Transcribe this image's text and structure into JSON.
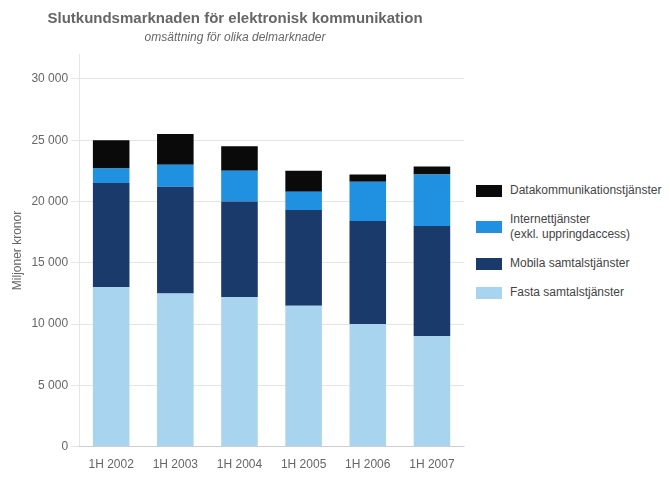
{
  "chart_data": {
    "type": "bar",
    "stacked": true,
    "title": "Slutkundsmarknaden för elektronisk kommunikation",
    "subtitle": "omsättning för olika delmarknader",
    "ylabel": "Miljoner kronor",
    "categories": [
      "1H 2002",
      "1H 2003",
      "1H 2004",
      "1H 2005",
      "1H 2006",
      "1H 2007"
    ],
    "series": [
      {
        "name": "Fasta samtalstjänster",
        "color": "#a8d4f0",
        "values": [
          13000,
          12500,
          12200,
          11500,
          10000,
          9000
        ]
      },
      {
        "name": "Mobila samtalstjänster",
        "color": "#1a3a6b",
        "values": [
          8500,
          8700,
          7800,
          7800,
          8400,
          9000
        ]
      },
      {
        "name": "Internettjänster\n(exkl. uppringdaccess)",
        "color": "#2090e0",
        "values": [
          1200,
          1800,
          2500,
          1500,
          3200,
          4200
        ]
      },
      {
        "name": "Datakommunikationstjänster",
        "color": "#0a0a0a",
        "values": [
          2300,
          2500,
          2000,
          1700,
          600,
          650
        ]
      }
    ],
    "ylim": [
      0,
      32000
    ],
    "yticks": [
      0,
      {
        "value": 5000,
        "label": "5 000"
      },
      {
        "value": 10000,
        "label": "10 000"
      },
      {
        "value": 15000,
        "label": "15 000"
      },
      {
        "value": 20000,
        "label": "20 000"
      },
      {
        "value": 25000,
        "label": "25 000"
      },
      {
        "value": 30000,
        "label": "30 000"
      }
    ],
    "grid": true,
    "legend": "right"
  }
}
